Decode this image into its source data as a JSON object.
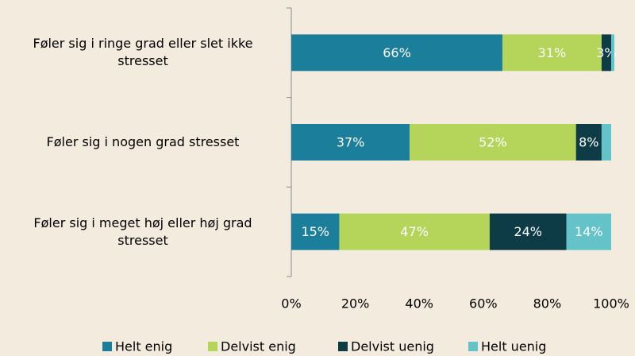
{
  "chart_data": {
    "type": "stacked-bar-horizontal",
    "categories": [
      "Føler sig i ringe grad  eller slet ikke stresset",
      "Føler sig i nogen grad stresset",
      "Føler sig i meget høj eller høj grad stresset"
    ],
    "series": [
      {
        "name": "Helt enig",
        "color": "#1b7e9b",
        "values": [
          66,
          37,
          15
        ],
        "value_labels": [
          "66%",
          "37%",
          "15%"
        ]
      },
      {
        "name": "Delvist enig",
        "color": "#b5d55a",
        "values": [
          31,
          52,
          47
        ],
        "value_labels": [
          "31%",
          "52%",
          "47%"
        ]
      },
      {
        "name": "Delvist uenig",
        "color": "#0e3c46",
        "values": [
          3,
          8,
          24
        ],
        "value_labels": [
          "3%",
          "8%",
          "24%"
        ]
      },
      {
        "name": "Helt uenig",
        "color": "#63c3c9",
        "values": [
          1,
          3,
          14
        ],
        "value_labels": [
          null,
          null,
          "14%"
        ]
      }
    ],
    "xlim": [
      0,
      100
    ],
    "xticks": [
      {
        "value": 0,
        "label": "0%"
      },
      {
        "value": 20,
        "label": "20%"
      },
      {
        "value": 40,
        "label": "40%"
      },
      {
        "value": 60,
        "label": "60%"
      },
      {
        "value": 80,
        "label": "80%"
      },
      {
        "value": 100,
        "label": "100%"
      }
    ]
  }
}
